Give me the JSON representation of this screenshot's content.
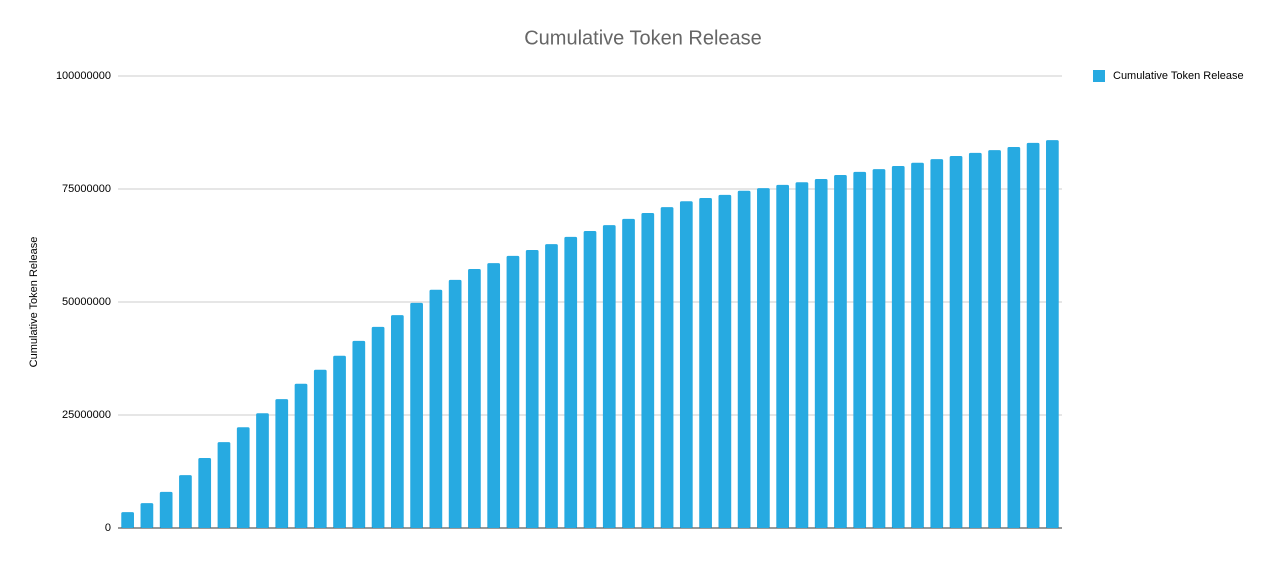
{
  "chart_data": {
    "type": "bar",
    "title": "Cumulative Token Release",
    "y_label": "Cumulative Token Release",
    "categories": [
      null,
      null,
      null,
      null,
      null,
      null,
      null,
      null,
      null,
      null,
      null,
      null,
      null,
      null,
      null,
      null,
      null,
      null,
      null,
      null,
      null,
      null,
      null,
      null,
      null,
      null,
      null,
      null,
      null,
      null,
      null,
      null,
      null,
      null,
      null,
      null,
      null,
      null,
      null,
      null,
      null,
      null,
      null,
      null,
      null,
      null,
      null,
      null,
      null
    ],
    "series": [
      {
        "name": "Cumulative Token Release",
        "color": "#27aae1",
        "values": [
          3500000,
          5500000,
          8000000,
          11700000,
          15500000,
          19000000,
          22300000,
          25400000,
          28500000,
          31900000,
          35000000,
          38100000,
          41400000,
          44500000,
          47100000,
          49800000,
          52700000,
          54900000,
          57300000,
          58600000,
          60200000,
          61500000,
          62800000,
          64400000,
          65700000,
          67000000,
          68400000,
          69700000,
          71000000,
          72300000,
          73000000,
          73700000,
          74600000,
          75200000,
          75900000,
          76500000,
          77200000,
          78100000,
          78800000,
          79400000,
          80100000,
          80800000,
          81600000,
          82300000,
          83000000,
          83600000,
          84300000,
          85200000,
          85800000
        ]
      }
    ],
    "ylim": [
      0,
      100000000
    ],
    "yticks": [
      0,
      25000000,
      50000000,
      75000000,
      100000000
    ],
    "grid": true,
    "legend": "top-right"
  }
}
